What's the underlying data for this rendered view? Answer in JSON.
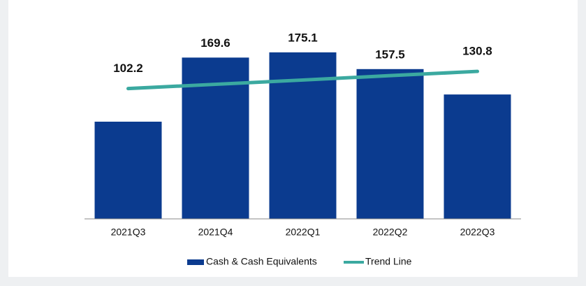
{
  "chart_data": {
    "type": "bar",
    "categories": [
      "2021Q3",
      "2021Q4",
      "2022Q1",
      "2022Q2",
      "2022Q3"
    ],
    "series": [
      {
        "name": "Cash & Cash Equivalents",
        "color": "#0b3b8f",
        "values": [
          102.2,
          169.6,
          175.1,
          157.5,
          130.8
        ]
      },
      {
        "name": "Trend Line",
        "type": "line",
        "color": "#3ba9a0",
        "values": [
          137.0,
          141.5,
          146.0,
          150.6,
          155.1
        ]
      }
    ],
    "ylim": [
      0,
      200
    ],
    "legend": "bottom"
  }
}
